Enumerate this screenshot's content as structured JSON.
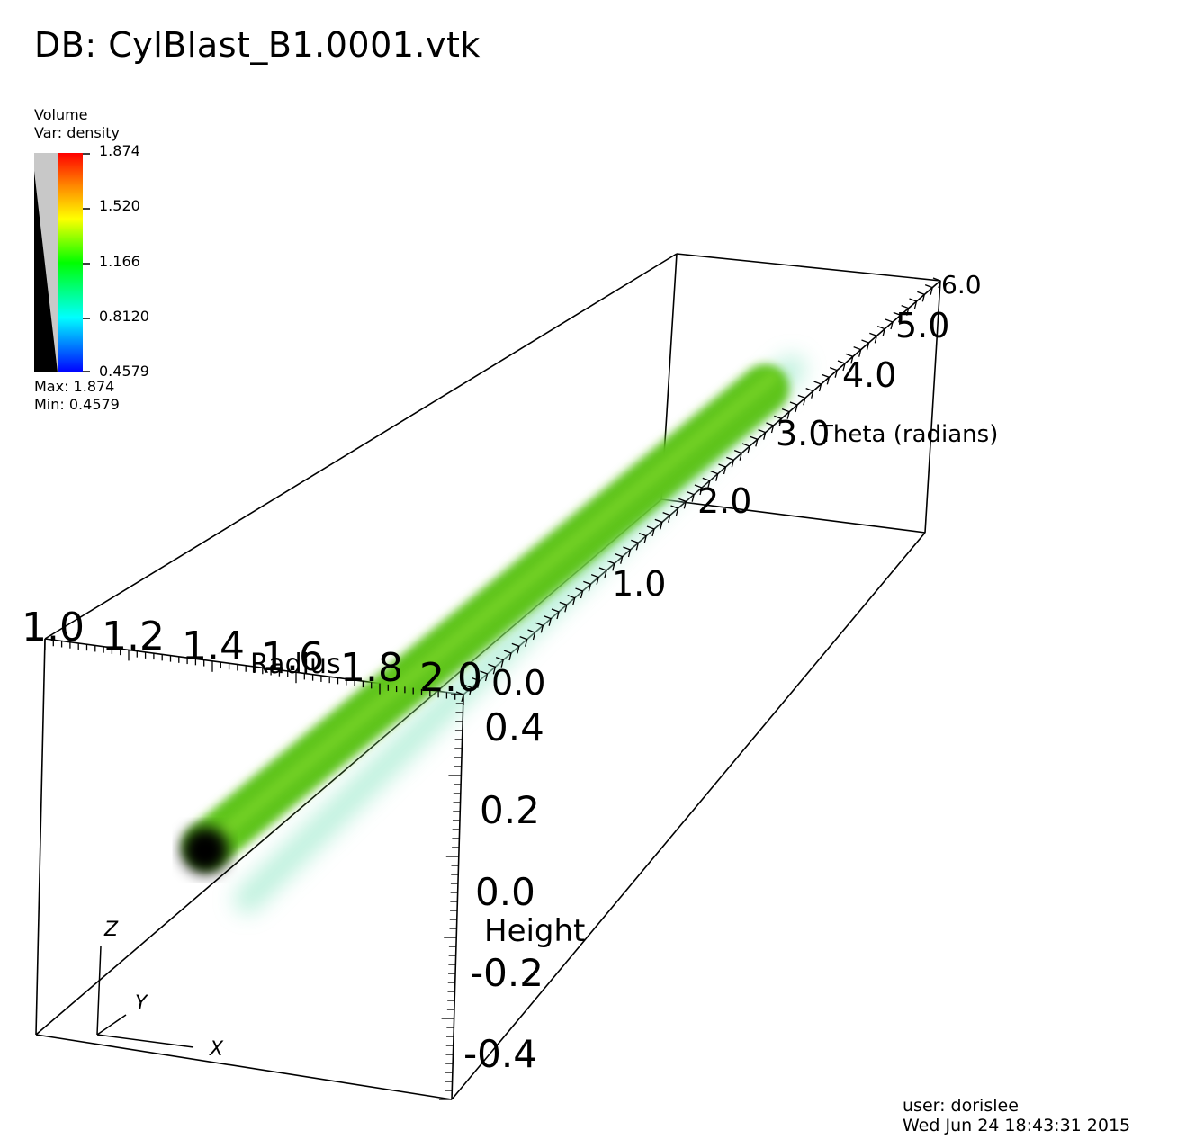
{
  "window": {
    "title": "DB: CylBlast_B1.0001.vtk"
  },
  "legend": {
    "plot_type": "Volume",
    "variable": "Var: density",
    "ticks": [
      "1.874",
      "1.520",
      "1.166",
      "0.8120",
      "0.4579"
    ],
    "max": "Max:  1.874",
    "min": "Min:  0.4579",
    "colors": [
      "#ff0000",
      "#ff8800",
      "#ffff00",
      "#00ff00",
      "#00ffff",
      "#0000ff"
    ]
  },
  "axes": {
    "radius": {
      "label": "Radius",
      "ticks": [
        "1.0",
        "1.2",
        "1.4",
        "1.6",
        "1.8",
        "2.0"
      ]
    },
    "theta": {
      "label": "Theta (radians)",
      "ticks": [
        "0.0",
        "1.0",
        "2.0",
        "3.0",
        "4.0",
        "5.0",
        "6.0"
      ]
    },
    "height": {
      "label": "Height",
      "ticks": [
        "0.4",
        "0.2",
        "0.0",
        "-0.2",
        "-0.4"
      ]
    }
  },
  "triad": {
    "z": "Z",
    "y": "Y",
    "x": "X"
  },
  "volume": {
    "color": "#5ec41c",
    "glow": "#9fe8c8"
  },
  "footer": {
    "user": "user: dorislee",
    "timestamp": "Wed Jun 24 18:43:31 2015"
  }
}
